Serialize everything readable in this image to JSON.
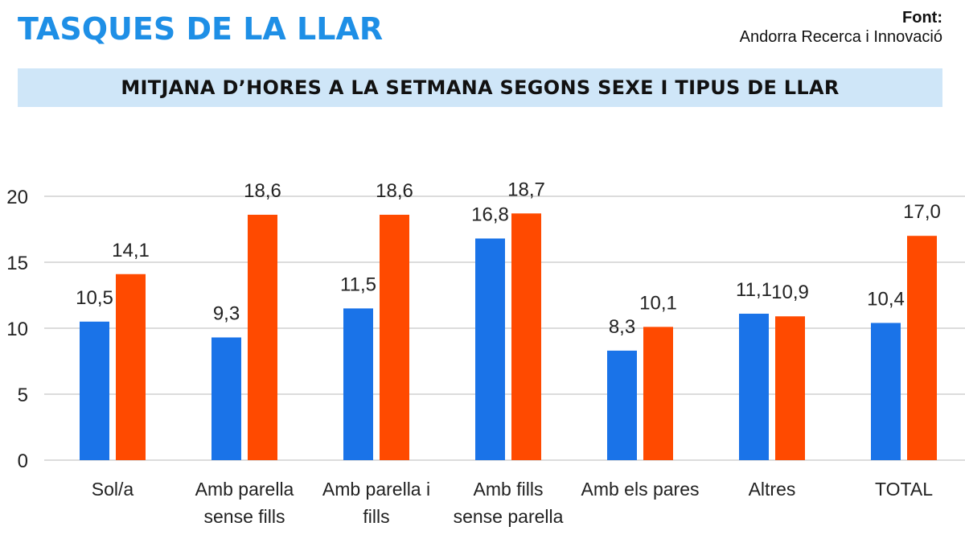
{
  "header": {
    "title": "TASQUES DE LA LLAR",
    "source_label": "Font:",
    "source_value": "Andorra Recerca i Innovació"
  },
  "chart_data": {
    "type": "bar",
    "title": "MITJANA D’HORES A LA SETMANA SEGONS SEXE I TIPUS DE LLAR",
    "categories": [
      [
        "Sol/a"
      ],
      [
        "Amb parella",
        "sense fills"
      ],
      [
        "Amb parella i",
        "fills"
      ],
      [
        "Amb fills",
        "sense parella"
      ],
      [
        "Amb els pares"
      ],
      [
        "Altres"
      ],
      [
        "TOTAL"
      ]
    ],
    "series": [
      {
        "color": "#1a73e8",
        "values": [
          10.5,
          9.3,
          11.5,
          16.8,
          8.3,
          11.1,
          10.4
        ],
        "labels": [
          "10,5",
          "9,3",
          "11,5",
          "16,8",
          "8,3",
          "11,1",
          "10,4"
        ]
      },
      {
        "color": "#ff4a00",
        "values": [
          14.1,
          18.6,
          18.6,
          18.7,
          10.1,
          10.9,
          17.0
        ],
        "labels": [
          "14,1",
          "18,6",
          "18,6",
          "18,7",
          "10,1",
          "10,9",
          "17,0"
        ]
      }
    ],
    "yticks": [
      0,
      5,
      10,
      15,
      20
    ],
    "ylim": [
      0,
      20
    ],
    "grid": true,
    "legend": "none"
  }
}
